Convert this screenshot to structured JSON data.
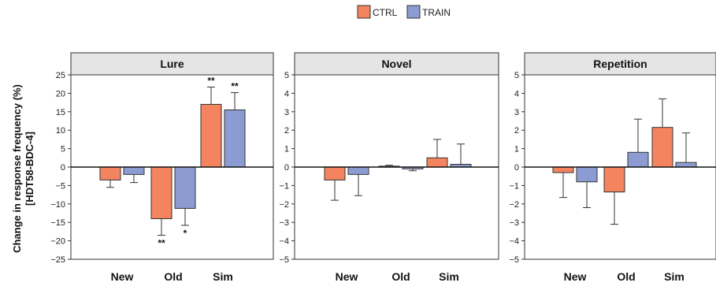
{
  "figure": {
    "ylabel_line1": "Change in response frequency (%)",
    "ylabel_line2": "[HDT58-BDC-4]"
  },
  "legend": {
    "items": [
      {
        "label": "CTRL",
        "color": "#f4845f"
      },
      {
        "label": "TRAIN",
        "color": "#8c9cd2"
      }
    ]
  },
  "colors": {
    "ctrl": "#f4845f",
    "train": "#8c9cd2",
    "panel_header_bg": "#e5e5e5",
    "error_bar": "#333333"
  },
  "chart_data": [
    {
      "type": "bar",
      "title": "Lure",
      "categories": [
        "New",
        "Old",
        "Sim"
      ],
      "ylim": [
        -25,
        25
      ],
      "yticks": [
        25,
        20,
        15,
        10,
        5,
        0,
        -5,
        -10,
        -15,
        -20,
        -25
      ],
      "series": [
        {
          "name": "CTRL",
          "values": [
            -3.5,
            -14,
            17
          ],
          "errors": [
            2.0,
            4.5,
            4.7
          ],
          "significance": [
            "",
            "**",
            "**"
          ]
        },
        {
          "name": "TRAIN",
          "values": [
            -2,
            -11.2,
            15.5
          ],
          "errors": [
            2.2,
            4.6,
            4.7
          ],
          "significance": [
            "",
            "*",
            "**"
          ]
        }
      ]
    },
    {
      "type": "bar",
      "title": "Novel",
      "categories": [
        "New",
        "Old",
        "Sim"
      ],
      "ylim": [
        -5,
        5
      ],
      "yticks": [
        5,
        4,
        3,
        2,
        1,
        0,
        -1,
        -2,
        -3,
        -4,
        -5
      ],
      "series": [
        {
          "name": "CTRL",
          "values": [
            -0.7,
            0.05,
            0.5
          ],
          "errors": [
            1.1,
            0.05,
            1.0
          ],
          "significance": [
            "",
            "",
            ""
          ]
        },
        {
          "name": "TRAIN",
          "values": [
            -0.4,
            -0.1,
            0.15
          ],
          "errors": [
            1.15,
            0.1,
            1.1
          ],
          "significance": [
            "",
            "",
            ""
          ]
        }
      ]
    },
    {
      "type": "bar",
      "title": "Repetition",
      "categories": [
        "New",
        "Old",
        "Sim"
      ],
      "ylim": [
        -5,
        5
      ],
      "yticks": [
        5,
        4,
        3,
        2,
        1,
        0,
        -1,
        -2,
        -3,
        -4,
        -5
      ],
      "series": [
        {
          "name": "CTRL",
          "values": [
            -0.3,
            -1.35,
            2.15
          ],
          "errors": [
            1.35,
            1.75,
            1.55
          ],
          "significance": [
            "",
            "",
            ""
          ]
        },
        {
          "name": "TRAIN",
          "values": [
            -0.8,
            0.8,
            0.25
          ],
          "errors": [
            1.4,
            1.8,
            1.6
          ],
          "significance": [
            "",
            "",
            ""
          ]
        }
      ]
    }
  ]
}
